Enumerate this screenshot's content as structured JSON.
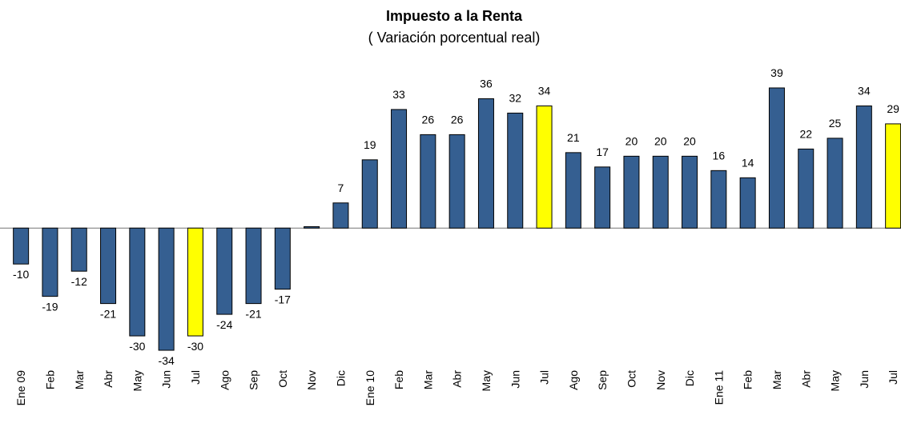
{
  "chart_data": {
    "type": "bar",
    "title": "Impuesto a la Renta",
    "subtitle": "( Variación porcentual real)",
    "categories": [
      "Ene 09",
      "Feb",
      "Mar",
      "Abr",
      "May",
      "Jun",
      "Jul",
      "Ago",
      "Sep",
      "Oct",
      "Nov",
      "Dic",
      "Ene 10",
      "Feb",
      "Mar",
      "Abr",
      "May",
      "Jun",
      "Jul",
      "Ago",
      "Sep",
      "Oct",
      "Nov",
      "Dic",
      "Ene 11",
      "Feb",
      "Mar",
      "Abr",
      "May",
      "Jun",
      "Jul"
    ],
    "values": [
      -10,
      -19,
      -12,
      -21,
      -30,
      -34,
      -30,
      -24,
      -21,
      -17,
      0.4,
      7,
      19,
      33,
      26,
      26,
      36,
      32,
      34,
      21,
      17,
      20,
      20,
      20,
      16,
      14,
      39,
      22,
      25,
      34,
      29
    ],
    "value_labels": [
      "-10",
      "-19",
      "-12",
      "-21",
      "-30",
      "-34",
      "-30",
      "-24",
      "-21",
      "-17",
      null,
      "7",
      "19",
      "33",
      "26",
      "26",
      "36",
      "32",
      "34",
      "21",
      "17",
      "20",
      "20",
      "20",
      "16",
      "14",
      "39",
      "22",
      "25",
      "34",
      "29"
    ],
    "colors": [
      "#355f91",
      "#355f91",
      "#355f91",
      "#355f91",
      "#355f91",
      "#355f91",
      "#ffff00",
      "#355f91",
      "#355f91",
      "#355f91",
      "#355f91",
      "#355f91",
      "#355f91",
      "#355f91",
      "#355f91",
      "#355f91",
      "#355f91",
      "#355f91",
      "#ffff00",
      "#355f91",
      "#355f91",
      "#355f91",
      "#355f91",
      "#355f91",
      "#355f91",
      "#355f91",
      "#355f91",
      "#355f91",
      "#355f91",
      "#355f91",
      "#ffff00"
    ],
    "ylim": [
      -40,
      45
    ]
  }
}
